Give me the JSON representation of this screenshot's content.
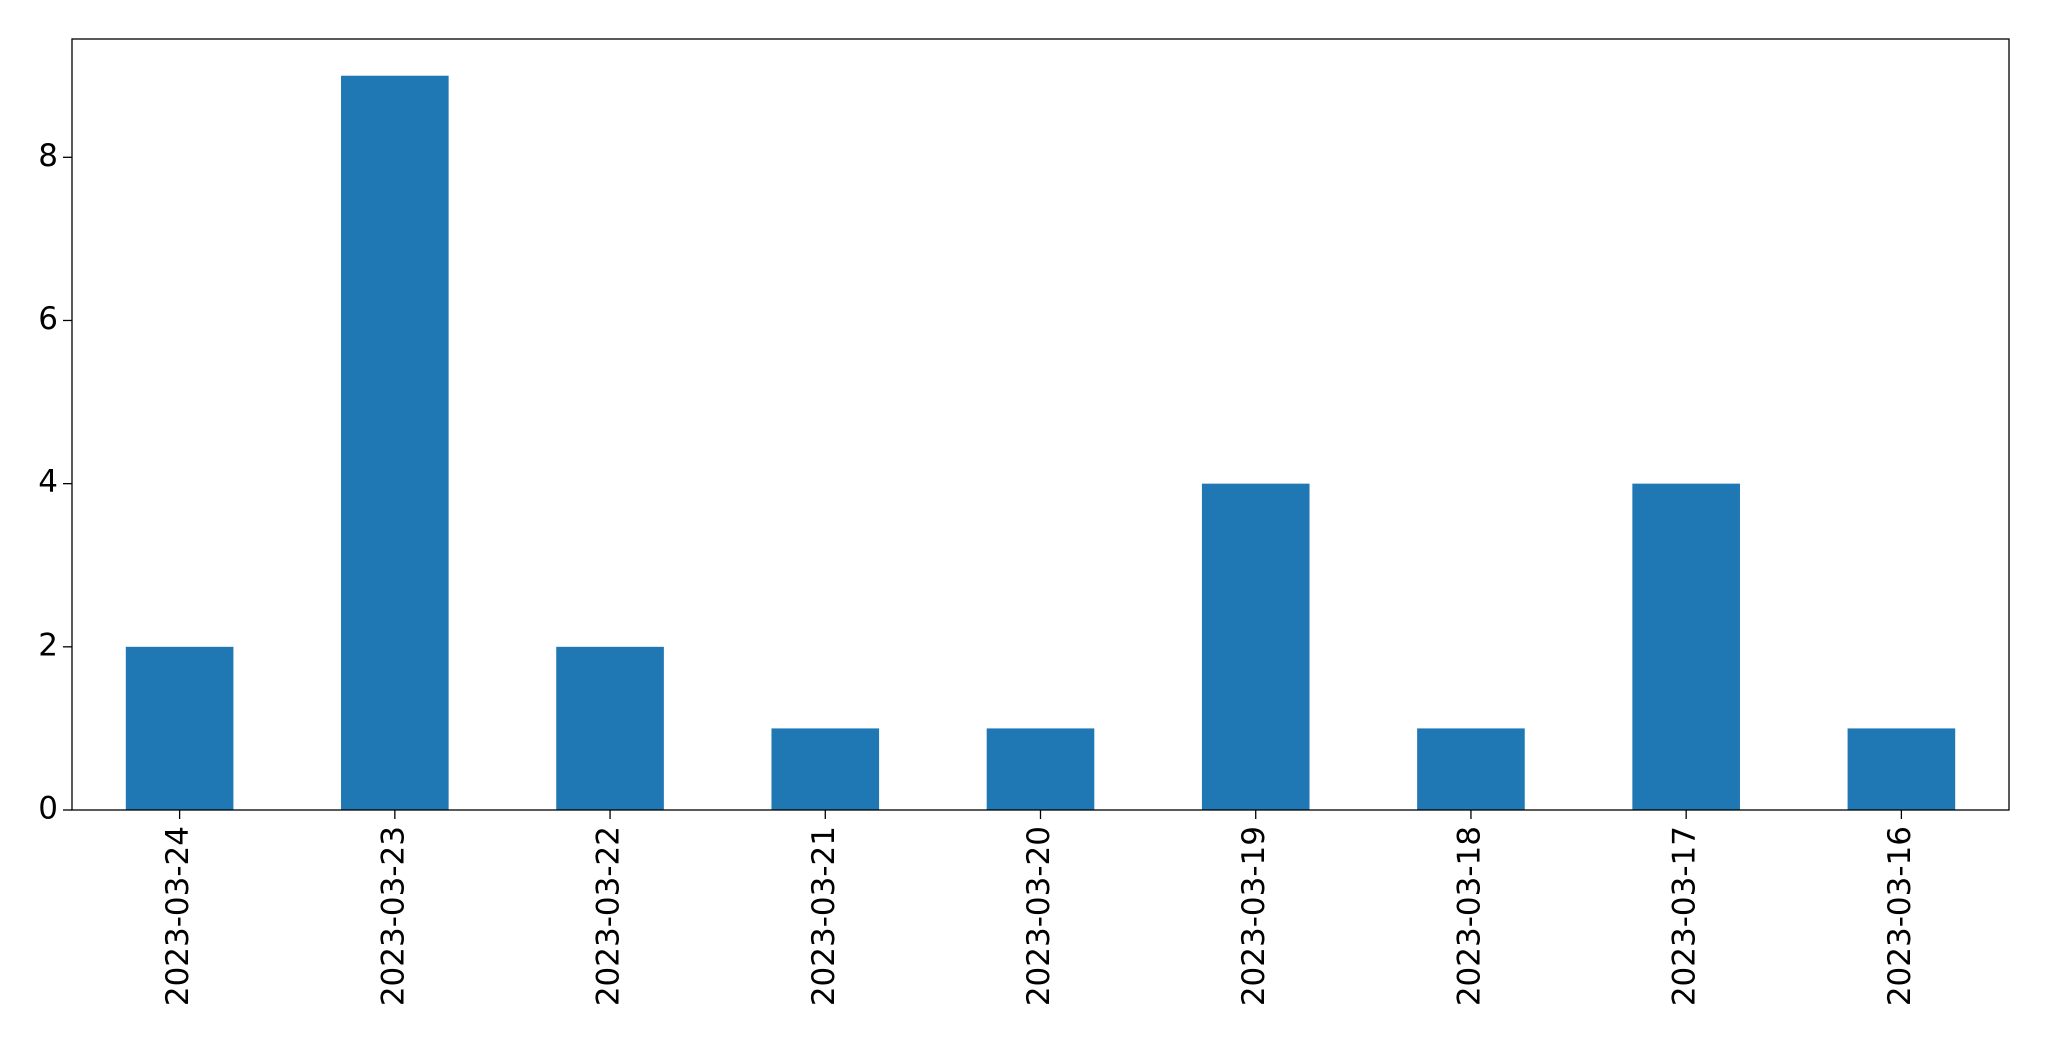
{
  "chart_data": {
    "type": "bar",
    "categories": [
      "2023-03-24",
      "2023-03-23",
      "2023-03-22",
      "2023-03-21",
      "2023-03-20",
      "2023-03-19",
      "2023-03-18",
      "2023-03-17",
      "2023-03-16"
    ],
    "values": [
      2,
      9,
      2,
      1,
      1,
      4,
      1,
      4,
      1
    ],
    "color": "#1f77b4",
    "ylim": [
      0,
      9.45
    ],
    "yticks": [
      0,
      2,
      4,
      6,
      8
    ],
    "grid": false
  }
}
